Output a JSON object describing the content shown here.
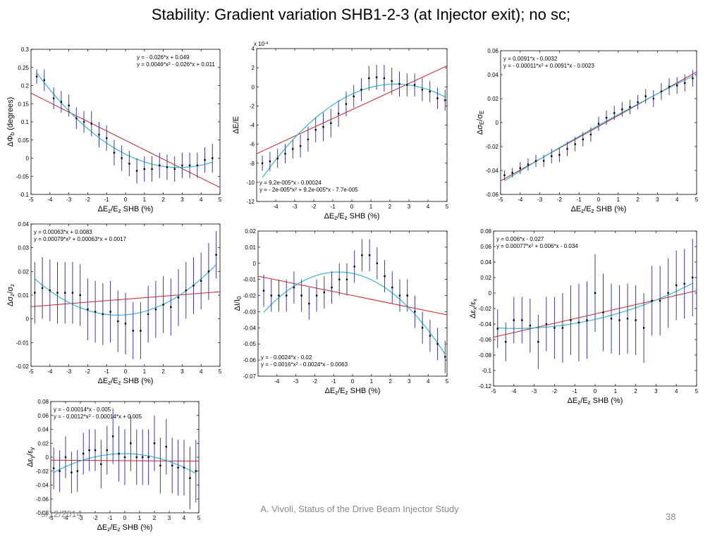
{
  "slide": {
    "title": "Stability: Gradient variation SHB1-2-3 (at Injector exit); no sc;",
    "footer_date": "9/12/2014",
    "footer_center": "A. Vivoli, Status of the Drive Beam Injector Study",
    "page_number": "38"
  },
  "colors": {
    "fit_linear": "#cc2222",
    "fit_quad": "#33b8c9",
    "errorbar": "#3a3aa8",
    "point": "#000000"
  },
  "chart_data": [
    {
      "type": "scatter",
      "name": "phi",
      "xlabel": "ΔE_z/E_z SHB (%)",
      "ylabel": "ΔΦ_b (degrees)",
      "xlim": [
        -5,
        5
      ],
      "ylim": [
        -0.1,
        0.3
      ],
      "xticks": [
        -5,
        -4,
        -3,
        -2,
        -1,
        0,
        1,
        2,
        3,
        4,
        5
      ],
      "yticks": [
        -0.1,
        -0.05,
        0,
        0.05,
        0.1,
        0.15,
        0.2,
        0.25,
        0.3
      ],
      "exponent_label": "",
      "equations": [
        "y = - 0.026*x + 0.049",
        "y = 0.0046*x^2 - 0.026*x + 0.011"
      ],
      "eq_position": "top-right",
      "linear_fit": [
        -0.026,
        0.049
      ],
      "quad_fit": [
        0.0046,
        -0.026,
        0.011
      ],
      "x": [
        -4.7,
        -4.3,
        -3.8,
        -3.4,
        -3.0,
        -2.6,
        -2.2,
        -1.8,
        -1.4,
        -1.0,
        -0.6,
        -0.2,
        0.2,
        0.6,
        1.0,
        1.4,
        1.8,
        2.2,
        2.6,
        3.0,
        3.4,
        3.8,
        4.2,
        4.6
      ],
      "y": [
        0.225,
        0.215,
        0.165,
        0.155,
        0.145,
        0.11,
        0.1,
        0.095,
        0.065,
        0.055,
        0.015,
        0.0,
        -0.015,
        -0.035,
        -0.03,
        -0.03,
        -0.02,
        -0.025,
        -0.03,
        -0.02,
        -0.02,
        -0.02,
        -0.005,
        0.0
      ],
      "err": [
        0.02,
        0.03,
        0.03,
        0.03,
        0.03,
        0.03,
        0.03,
        0.035,
        0.035,
        0.035,
        0.035,
        0.035,
        0.035,
        0.035,
        0.035,
        0.035,
        0.035,
        0.035,
        0.035,
        0.035,
        0.035,
        0.035,
        0.035,
        0.04
      ]
    },
    {
      "type": "scatter",
      "name": "energy",
      "xlabel": "ΔE_z/E_z SHB (%)",
      "ylabel": "ΔE/E",
      "xlim": [
        -5,
        5
      ],
      "ylim": [
        -12,
        4
      ],
      "xticks": [
        -4,
        -3,
        -2,
        -1,
        0,
        1,
        2,
        3,
        4,
        5
      ],
      "yticks": [
        -12,
        -10,
        -8,
        -6,
        -4,
        -2,
        0,
        2,
        4
      ],
      "exponent_label": "x 10^-4",
      "equations": [
        "y = 9.2e-005*x - 0.00024",
        "y = - 2e-005*x^2 + 9.2e-005*x - 7.7e-005"
      ],
      "eq_position": "bottom-left",
      "linear_fit": [
        0.92,
        -2.4
      ],
      "quad_fit": [
        -0.2,
        0.92,
        -0.77
      ],
      "x": [
        -4.7,
        -4.3,
        -3.9,
        -3.5,
        -3.1,
        -2.7,
        -2.3,
        -1.9,
        -1.5,
        -1.1,
        -0.7,
        -0.3,
        0.1,
        0.5,
        0.9,
        1.3,
        1.7,
        2.1,
        2.5,
        2.9,
        3.3,
        3.7,
        4.1,
        4.5,
        4.9
      ],
      "y": [
        -8.0,
        -7.8,
        -7.5,
        -7.0,
        -6.5,
        -6.2,
        -5.5,
        -4.5,
        -4.2,
        -3.8,
        -2.8,
        -1.8,
        -1.0,
        -0.3,
        0.9,
        1.0,
        0.9,
        0.6,
        0.3,
        0.2,
        0.2,
        -0.3,
        -0.5,
        -1.2,
        -1.4
      ],
      "err": [
        0.8,
        1.0,
        1.0,
        1.0,
        1.0,
        1.2,
        1.3,
        1.3,
        1.5,
        1.5,
        1.4,
        1.3,
        1.2,
        1.2,
        1.3,
        1.3,
        1.4,
        1.4,
        1.3,
        1.2,
        1.2,
        1.2,
        1.1,
        1.1,
        1.1
      ]
    },
    {
      "type": "scatter",
      "name": "sigmaE",
      "xlabel": "ΔE_z/E_z SHB (%)",
      "ylabel": "Δσ_E/σ_E",
      "xlim": [
        -5,
        5
      ],
      "ylim": [
        -0.06,
        0.06
      ],
      "xticks": [
        -5,
        -4,
        -3,
        -2,
        -1,
        0,
        1,
        2,
        3,
        4,
        5
      ],
      "yticks": [
        -0.06,
        -0.04,
        -0.02,
        0,
        0.02,
        0.04,
        0.06
      ],
      "exponent_label": "",
      "equations": [
        "y = 0.0091*x - 0.0032",
        "y = - 0.00011*x^2 + 0.0091*x - 0.0023"
      ],
      "eq_position": "top-left",
      "linear_fit": [
        0.0091,
        -0.0032
      ],
      "quad_fit": [
        -0.00011,
        0.0091,
        -0.0023
      ],
      "x": [
        -4.8,
        -4.4,
        -4.0,
        -3.6,
        -3.2,
        -2.8,
        -2.4,
        -2.0,
        -1.6,
        -1.2,
        -0.8,
        -0.4,
        0.0,
        0.4,
        0.8,
        1.2,
        1.6,
        2.0,
        2.4,
        2.8,
        3.2,
        3.6,
        4.0,
        4.4,
        4.8
      ],
      "y": [
        -0.044,
        -0.042,
        -0.038,
        -0.035,
        -0.032,
        -0.032,
        -0.028,
        -0.027,
        -0.022,
        -0.018,
        -0.014,
        -0.01,
        -0.001,
        0.004,
        0.008,
        0.011,
        0.013,
        0.017,
        0.022,
        0.02,
        0.026,
        0.03,
        0.031,
        0.033,
        0.037
      ],
      "err": [
        0.004,
        0.004,
        0.005,
        0.005,
        0.005,
        0.005,
        0.006,
        0.006,
        0.006,
        0.006,
        0.006,
        0.006,
        0.006,
        0.006,
        0.006,
        0.006,
        0.006,
        0.006,
        0.006,
        0.007,
        0.007,
        0.007,
        0.007,
        0.007,
        0.007
      ]
    },
    {
      "type": "scatter",
      "name": "sigmaz",
      "xlabel": "ΔE_z/E_z SHB (%)",
      "ylabel": "Δσ_z/σ_z",
      "xlim": [
        -5,
        5
      ],
      "ylim": [
        -0.02,
        0.04
      ],
      "xticks": [
        -5,
        -4,
        -3,
        -2,
        -1,
        0,
        1,
        2,
        3,
        4,
        5
      ],
      "yticks": [
        -0.02,
        -0.01,
        0,
        0.01,
        0.02,
        0.03,
        0.04
      ],
      "exponent_label": "",
      "equations": [
        "y = 0.00063*x + 0.0083",
        "y = 0.00079*x^2 + 0.00063*x + 0.0017"
      ],
      "eq_position": "top-left",
      "linear_fit": [
        0.00063,
        0.0083
      ],
      "quad_fit": [
        0.00079,
        0.00063,
        0.0017
      ],
      "x": [
        -4.8,
        -4.4,
        -4.0,
        -3.6,
        -3.2,
        -2.8,
        -2.4,
        -2.0,
        -1.6,
        -1.2,
        -0.8,
        -0.4,
        0.0,
        0.4,
        0.8,
        1.2,
        1.6,
        2.0,
        2.4,
        2.8,
        3.2,
        3.6,
        4.0,
        4.4,
        4.8
      ],
      "y": [
        0.011,
        0.013,
        0.012,
        0.011,
        0.011,
        0.011,
        0.01,
        0.004,
        0.003,
        0.002,
        0.003,
        -0.001,
        -0.002,
        -0.005,
        -0.005,
        0.002,
        0.004,
        0.006,
        0.005,
        0.009,
        0.012,
        0.014,
        0.016,
        0.02,
        0.027
      ],
      "err": [
        0.013,
        0.013,
        0.013,
        0.013,
        0.013,
        0.013,
        0.013,
        0.013,
        0.013,
        0.013,
        0.013,
        0.013,
        0.013,
        0.012,
        0.012,
        0.012,
        0.012,
        0.012,
        0.012,
        0.012,
        0.012,
        0.012,
        0.012,
        0.012,
        0.01
      ]
    },
    {
      "type": "scatter",
      "name": "current",
      "xlabel": "ΔE_z/E_z SHB (%)",
      "ylabel": "ΔI/I_0",
      "xlim": [
        -5,
        5
      ],
      "ylim": [
        -0.07,
        0.02
      ],
      "xticks": [
        -4,
        -3,
        -2,
        -1,
        0,
        1,
        2,
        3,
        4,
        5
      ],
      "yticks": [
        -0.07,
        -0.06,
        -0.05,
        -0.04,
        -0.03,
        -0.02,
        -0.01,
        0,
        0.01,
        0.02
      ],
      "exponent_label": "",
      "equations": [
        "y = - 0.0024*x - 0.02",
        "y = - 0.0016*x^2 - 0.0024*x - 0.0063"
      ],
      "eq_position": "bottom-left",
      "linear_fit": [
        -0.0024,
        -0.02
      ],
      "quad_fit": [
        -0.0016,
        -0.0024,
        -0.0063
      ],
      "x": [
        -4.7,
        -4.3,
        -3.9,
        -3.5,
        -3.1,
        -2.7,
        -2.3,
        -1.9,
        -1.5,
        -1.1,
        -0.7,
        -0.3,
        0.1,
        0.5,
        0.9,
        1.3,
        1.7,
        2.1,
        2.5,
        2.9,
        3.3,
        3.7,
        4.1,
        4.5,
        4.9
      ],
      "y": [
        -0.017,
        -0.02,
        -0.02,
        -0.02,
        -0.015,
        -0.02,
        -0.025,
        -0.02,
        -0.018,
        -0.015,
        -0.01,
        -0.01,
        -0.002,
        0.005,
        0.005,
        0.0,
        -0.008,
        -0.015,
        -0.02,
        -0.02,
        -0.03,
        -0.04,
        -0.045,
        -0.05,
        -0.058
      ],
      "err": [
        0.01,
        0.01,
        0.01,
        0.01,
        0.01,
        0.01,
        0.01,
        0.01,
        0.01,
        0.01,
        0.01,
        0.01,
        0.01,
        0.01,
        0.01,
        0.01,
        0.01,
        0.01,
        0.01,
        0.01,
        0.01,
        0.01,
        0.01,
        0.01,
        0.01
      ]
    },
    {
      "type": "scatter",
      "name": "emitx",
      "xlabel": "ΔE_z/E_z SHB (%)",
      "ylabel": "Δε_x/ε_x",
      "xlim": [
        -5,
        5
      ],
      "ylim": [
        -0.12,
        0.08
      ],
      "xticks": [
        -5,
        -4,
        -3,
        -2,
        -1,
        0,
        1,
        2,
        3,
        4,
        5
      ],
      "yticks": [
        -0.12,
        -0.1,
        -0.08,
        -0.06,
        -0.04,
        -0.02,
        0,
        0.02,
        0.04,
        0.06,
        0.08
      ],
      "exponent_label": "",
      "equations": [
        "y = 0.006*x - 0.027",
        "y = 0.00077*x^2 + 0.006*x - 0.034"
      ],
      "eq_position": "top-left",
      "linear_fit": [
        0.006,
        -0.027
      ],
      "quad_fit": [
        0.00077,
        0.006,
        -0.034
      ],
      "x": [
        -4.8,
        -4.4,
        -4.0,
        -3.6,
        -3.2,
        -2.8,
        -2.4,
        -2.0,
        -1.6,
        -1.2,
        -0.8,
        -0.4,
        0.0,
        0.4,
        0.8,
        1.2,
        1.6,
        2.0,
        2.4,
        2.8,
        3.2,
        3.6,
        4.0,
        4.4,
        4.8
      ],
      "y": [
        -0.046,
        -0.063,
        -0.035,
        -0.035,
        -0.042,
        -0.063,
        -0.04,
        -0.045,
        -0.045,
        -0.035,
        -0.038,
        -0.035,
        0.0,
        -0.025,
        -0.033,
        -0.035,
        -0.033,
        -0.035,
        -0.045,
        -0.01,
        -0.01,
        0.0,
        0.01,
        0.012,
        0.02
      ],
      "err": [
        0.025,
        0.025,
        0.03,
        0.03,
        0.035,
        0.035,
        0.035,
        0.04,
        0.045,
        0.045,
        0.05,
        0.05,
        0.05,
        0.05,
        0.045,
        0.045,
        0.045,
        0.045,
        0.045,
        0.045,
        0.045,
        0.045,
        0.045,
        0.045,
        0.05
      ]
    },
    {
      "type": "scatter",
      "name": "emity",
      "xlabel": "ΔE_z/E_z SHB (%)",
      "ylabel": "Δε_y/ε_y",
      "xlim": [
        -5,
        5
      ],
      "ylim": [
        -0.08,
        0.08
      ],
      "xticks": [
        -5,
        -4,
        -3,
        -2,
        -1,
        0,
        1,
        2,
        3,
        4,
        5
      ],
      "yticks": [
        -0.08,
        -0.06,
        -0.04,
        -0.02,
        0,
        0.02,
        0.04,
        0.06,
        0.08
      ],
      "exponent_label": "",
      "equations": [
        "y = - 0.00014*x - 0.005",
        "y = - 0.0012*x^2 - 0.00014*x + 0.005"
      ],
      "eq_position": "top-left",
      "linear_fit": [
        -0.00014,
        -0.005
      ],
      "quad_fit": [
        -0.0012,
        -0.00014,
        0.005
      ],
      "x": [
        -4.8,
        -4.4,
        -4.0,
        -3.6,
        -3.2,
        -2.8,
        -2.4,
        -2.0,
        -1.6,
        -1.2,
        -0.8,
        -0.4,
        0.0,
        0.4,
        0.8,
        1.2,
        1.6,
        2.0,
        2.4,
        2.8,
        3.2,
        3.6,
        4.0,
        4.4,
        4.8
      ],
      "y": [
        -0.016,
        -0.02,
        -0.0,
        -0.022,
        -0.02,
        0.005,
        0.01,
        0.01,
        -0.01,
        0.01,
        0.03,
        0.005,
        0.0,
        0.02,
        0.0,
        0.0,
        0.0,
        0.02,
        -0.012,
        0.015,
        -0.012,
        -0.015,
        -0.015,
        -0.03,
        -0.02
      ],
      "err": [
        0.03,
        0.03,
        0.03,
        0.03,
        0.03,
        0.03,
        0.03,
        0.03,
        0.035,
        0.035,
        0.04,
        0.04,
        0.04,
        0.04,
        0.04,
        0.04,
        0.04,
        0.04,
        0.04,
        0.04,
        0.04,
        0.04,
        0.04,
        0.045,
        0.045
      ]
    }
  ]
}
